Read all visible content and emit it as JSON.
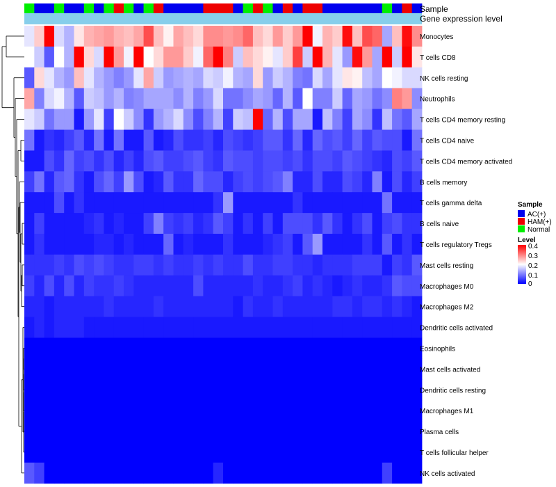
{
  "chart_data": {
    "type": "heatmap",
    "title": "",
    "annotation_rows": [
      "Sample",
      "Gene expression level"
    ],
    "row_labels": [
      "Monocytes",
      "T cells CD8",
      "NK cells resting",
      "Neutrophils",
      "T cells CD4 memory resting",
      "T cells CD4 naive",
      "T cells CD4 memory activated",
      "B cells memory",
      "T cells gamma delta",
      "B cells naive",
      "T cells regulatory  Tregs",
      "Mast cells resting",
      "Macrophages M0",
      "Macrophages M2",
      "Dendritic cells activated",
      "Eosinophils",
      "Mast cells activated",
      "Dendritic cells resting",
      "Macrophages M1",
      "Plasma cells",
      "T cells follicular helper",
      "NK cells activated"
    ],
    "sample_groups": [
      "Normal",
      "AC(+)",
      "AC(+)",
      "Normal",
      "AC(+)",
      "AC(+)",
      "Normal",
      "AC(+)",
      "Normal",
      "HAM(+)",
      "Normal",
      "AC(+)",
      "Normal",
      "HAM(+)",
      "AC(+)",
      "AC(+)",
      "AC(+)",
      "AC(+)",
      "HAM(+)",
      "HAM(+)",
      "HAM(+)",
      "AC(+)",
      "Normal",
      "HAM(+)",
      "Normal",
      "AC(+)",
      "HAM(+)",
      "AC(+)",
      "HAM(+)",
      "HAM(+)",
      "AC(+)",
      "AC(+)",
      "AC(+)",
      "AC(+)",
      "AC(+)",
      "AC(+)",
      "Normal",
      "AC(+)",
      "HAM(+)",
      "AC(+)"
    ],
    "values": [
      [
        0.18,
        0.24,
        0.4,
        0.17,
        0.14,
        0.22,
        0.26,
        0.27,
        0.28,
        0.26,
        0.25,
        0.27,
        0.34,
        0.25,
        0.21,
        0.27,
        0.25,
        0.23,
        0.29,
        0.29,
        0.28,
        0.29,
        0.32,
        0.25,
        0.23,
        0.28,
        0.24,
        0.28,
        0.4,
        0.19,
        0.26,
        0.24,
        0.39,
        0.25,
        0.34,
        0.32,
        0.13,
        0.25,
        0.39,
        0.29
      ],
      [
        0.2,
        0.16,
        0.07,
        0.2,
        0.14,
        0.4,
        0.23,
        0.17,
        0.4,
        0.28,
        0.19,
        0.4,
        0.2,
        0.23,
        0.28,
        0.28,
        0.24,
        0.19,
        0.32,
        0.4,
        0.3,
        0.16,
        0.25,
        0.23,
        0.21,
        0.18,
        0.24,
        0.35,
        0.16,
        0.4,
        0.26,
        0.18,
        0.12,
        0.39,
        0.28,
        0.13,
        0.4,
        0.16,
        0.4,
        0.22
      ],
      [
        0.07,
        0.23,
        0.18,
        0.14,
        0.12,
        0.25,
        0.18,
        0.14,
        0.12,
        0.1,
        0.12,
        0.18,
        0.27,
        0.16,
        0.12,
        0.13,
        0.14,
        0.13,
        0.17,
        0.16,
        0.19,
        0.14,
        0.13,
        0.23,
        0.12,
        0.16,
        0.14,
        0.1,
        0.09,
        0.17,
        0.13,
        0.18,
        0.22,
        0.21,
        0.15,
        0.13,
        0.2,
        0.19,
        0.17,
        0.17
      ],
      [
        0.27,
        0.1,
        0.17,
        0.19,
        0.14,
        0.07,
        0.16,
        0.15,
        0.12,
        0.14,
        0.1,
        0.11,
        0.13,
        0.13,
        0.13,
        0.11,
        0.14,
        0.1,
        0.12,
        0.17,
        0.09,
        0.09,
        0.11,
        0.13,
        0.12,
        0.08,
        0.14,
        0.07,
        0.2,
        0.1,
        0.1,
        0.16,
        0.08,
        0.13,
        0.12,
        0.09,
        0.11,
        0.3,
        0.28,
        0.11
      ],
      [
        0.18,
        0.16,
        0.09,
        0.12,
        0.12,
        0.02,
        0.12,
        0.18,
        0.05,
        0.2,
        0.16,
        0.11,
        0.04,
        0.12,
        0.14,
        0.17,
        0.11,
        0.06,
        0.1,
        0.14,
        0.05,
        0.16,
        0.15,
        0.4,
        0.08,
        0.14,
        0.06,
        0.13,
        0.13,
        0.02,
        0.15,
        0.1,
        0.05,
        0.13,
        0.11,
        0.04,
        0.15,
        0.09,
        0.07,
        0.13
      ],
      [
        0.09,
        0.02,
        0.04,
        0.03,
        0.05,
        0.07,
        0.03,
        0.09,
        0.02,
        0.09,
        0.02,
        0.02,
        0.07,
        0.02,
        0.03,
        0.06,
        0.04,
        0.04,
        0.05,
        0.03,
        0.06,
        0.05,
        0.04,
        0.05,
        0.07,
        0.07,
        0.04,
        0.08,
        0.03,
        0.08,
        0.06,
        0.07,
        0.05,
        0.08,
        0.05,
        0.07,
        0.06,
        0.06,
        0.02,
        0.09
      ],
      [
        0.02,
        0.02,
        0.06,
        0.04,
        0.08,
        0.05,
        0.06,
        0.04,
        0.06,
        0.03,
        0.05,
        0.03,
        0.06,
        0.07,
        0.05,
        0.05,
        0.06,
        0.07,
        0.05,
        0.04,
        0.07,
        0.06,
        0.06,
        0.05,
        0.06,
        0.06,
        0.05,
        0.06,
        0.04,
        0.06,
        0.06,
        0.05,
        0.07,
        0.06,
        0.05,
        0.04,
        0.03,
        0.06,
        0.05,
        0.07
      ],
      [
        0.05,
        0.09,
        0.03,
        0.07,
        0.08,
        0.04,
        0.02,
        0.06,
        0.08,
        0.05,
        0.12,
        0.06,
        0.02,
        0.03,
        0.07,
        0.04,
        0.04,
        0.08,
        0.06,
        0.06,
        0.03,
        0.05,
        0.06,
        0.05,
        0.06,
        0.07,
        0.1,
        0.03,
        0.03,
        0.06,
        0.03,
        0.03,
        0.06,
        0.05,
        0.03,
        0.1,
        0.02,
        0.06,
        0.03,
        0.05
      ],
      [
        0.02,
        0.02,
        0.02,
        0.06,
        0.02,
        0.04,
        0.02,
        0.02,
        0.02,
        0.02,
        0.02,
        0.02,
        0.02,
        0.02,
        0.02,
        0.02,
        0.02,
        0.02,
        0.02,
        0.04,
        0.12,
        0.02,
        0.02,
        0.02,
        0.02,
        0.02,
        0.02,
        0.04,
        0.02,
        0.02,
        0.02,
        0.02,
        0.02,
        0.02,
        0.02,
        0.02,
        0.09,
        0.02,
        0.02,
        0.02
      ],
      [
        0.02,
        0.05,
        0.02,
        0.02,
        0.02,
        0.02,
        0.03,
        0.04,
        0.02,
        0.03,
        0.02,
        0.02,
        0.05,
        0.1,
        0.05,
        0.04,
        0.05,
        0.03,
        0.04,
        0.07,
        0.05,
        0.02,
        0.04,
        0.02,
        0.05,
        0.02,
        0.06,
        0.06,
        0.06,
        0.04,
        0.07,
        0.04,
        0.02,
        0.04,
        0.06,
        0.02,
        0.05,
        0.06,
        0.04,
        0.04
      ],
      [
        0.02,
        0.04,
        0.02,
        0.02,
        0.02,
        0.02,
        0.02,
        0.03,
        0.03,
        0.02,
        0.03,
        0.02,
        0.02,
        0.02,
        0.08,
        0.02,
        0.03,
        0.02,
        0.02,
        0.02,
        0.04,
        0.02,
        0.02,
        0.02,
        0.03,
        0.04,
        0.05,
        0.02,
        0.07,
        0.12,
        0.02,
        0.02,
        0.02,
        0.02,
        0.04,
        0.02,
        0.07,
        0.02,
        0.04,
        0.02
      ],
      [
        0.04,
        0.04,
        0.04,
        0.05,
        0.04,
        0.06,
        0.05,
        0.06,
        0.05,
        0.04,
        0.04,
        0.05,
        0.05,
        0.04,
        0.05,
        0.04,
        0.04,
        0.05,
        0.04,
        0.05,
        0.04,
        0.04,
        0.06,
        0.04,
        0.04,
        0.05,
        0.05,
        0.04,
        0.04,
        0.03,
        0.04,
        0.04,
        0.04,
        0.05,
        0.05,
        0.05,
        0.02,
        0.05,
        0.04,
        0.07
      ],
      [
        0.05,
        0.03,
        0.06,
        0.03,
        0.06,
        0.03,
        0.05,
        0.04,
        0.04,
        0.05,
        0.04,
        0.03,
        0.03,
        0.03,
        0.03,
        0.03,
        0.03,
        0.06,
        0.03,
        0.03,
        0.03,
        0.03,
        0.03,
        0.04,
        0.03,
        0.03,
        0.04,
        0.05,
        0.03,
        0.04,
        0.03,
        0.02,
        0.03,
        0.04,
        0.03,
        0.03,
        0.04,
        0.07,
        0.06,
        0.06
      ],
      [
        0.03,
        0.03,
        0.02,
        0.03,
        0.03,
        0.03,
        0.03,
        0.03,
        0.04,
        0.03,
        0.03,
        0.03,
        0.03,
        0.04,
        0.03,
        0.03,
        0.03,
        0.03,
        0.03,
        0.03,
        0.03,
        0.02,
        0.04,
        0.03,
        0.03,
        0.04,
        0.03,
        0.03,
        0.03,
        0.03,
        0.03,
        0.04,
        0.04,
        0.03,
        0.04,
        0.04,
        0.03,
        0.04,
        0.03,
        0.02
      ],
      [
        0.02,
        0.03,
        0.02,
        0.03,
        0.03,
        0.03,
        0.02,
        0.02,
        0.02,
        0.02,
        0.02,
        0.02,
        0.02,
        0.02,
        0.02,
        0.02,
        0.02,
        0.02,
        0.02,
        0.02,
        0.02,
        0.02,
        0.02,
        0.02,
        0.02,
        0.02,
        0.02,
        0.02,
        0.02,
        0.02,
        0.02,
        0.02,
        0.02,
        0.02,
        0.02,
        0.02,
        0.02,
        0.02,
        0.02,
        0.02
      ],
      [
        0,
        0,
        0,
        0,
        0,
        0,
        0,
        0,
        0,
        0,
        0,
        0,
        0,
        0,
        0,
        0,
        0,
        0,
        0,
        0,
        0,
        0,
        0,
        0,
        0,
        0,
        0,
        0,
        0,
        0,
        0,
        0,
        0,
        0,
        0,
        0,
        0,
        0,
        0,
        0
      ],
      [
        0,
        0,
        0,
        0,
        0,
        0,
        0,
        0,
        0,
        0,
        0,
        0,
        0,
        0,
        0,
        0,
        0,
        0,
        0,
        0,
        0,
        0,
        0,
        0,
        0,
        0,
        0,
        0,
        0,
        0,
        0,
        0,
        0,
        0,
        0,
        0,
        0,
        0,
        0,
        0
      ],
      [
        0,
        0,
        0,
        0,
        0,
        0,
        0,
        0,
        0,
        0,
        0,
        0,
        0,
        0,
        0,
        0,
        0,
        0,
        0,
        0,
        0,
        0,
        0,
        0,
        0,
        0,
        0,
        0,
        0,
        0,
        0,
        0,
        0,
        0,
        0,
        0,
        0,
        0,
        0,
        0
      ],
      [
        0,
        0,
        0,
        0,
        0,
        0,
        0,
        0,
        0,
        0,
        0,
        0,
        0,
        0,
        0,
        0,
        0,
        0,
        0,
        0,
        0,
        0,
        0,
        0,
        0,
        0,
        0,
        0,
        0,
        0,
        0,
        0,
        0,
        0,
        0,
        0,
        0,
        0,
        0,
        0
      ],
      [
        0,
        0,
        0,
        0,
        0,
        0,
        0,
        0,
        0,
        0,
        0,
        0,
        0,
        0,
        0,
        0,
        0,
        0,
        0,
        0,
        0,
        0,
        0,
        0,
        0,
        0,
        0,
        0,
        0,
        0,
        0,
        0,
        0,
        0,
        0,
        0,
        0,
        0,
        0,
        0
      ],
      [
        0,
        0,
        0,
        0,
        0,
        0,
        0,
        0,
        0,
        0,
        0,
        0,
        0,
        0,
        0,
        0,
        0,
        0,
        0,
        0,
        0,
        0,
        0,
        0,
        0,
        0,
        0,
        0,
        0,
        0,
        0,
        0,
        0,
        0,
        0,
        0,
        0,
        0,
        0,
        0
      ],
      [
        0.07,
        0.05,
        0,
        0,
        0,
        0,
        0,
        0,
        0,
        0,
        0,
        0,
        0,
        0,
        0,
        0,
        0,
        0,
        0,
        0.03,
        0,
        0,
        0,
        0,
        0,
        0,
        0,
        0,
        0,
        0,
        0,
        0,
        0,
        0,
        0,
        0,
        0.05,
        0,
        0,
        0
      ]
    ],
    "value_range": [
      0,
      0.4
    ],
    "sample_legend": {
      "title": "Sample",
      "entries": [
        {
          "label": "AC(+)",
          "color": "#0000ee"
        },
        {
          "label": "HAM(+)",
          "color": "#ee0000"
        },
        {
          "label": "Normal",
          "color": "#00ee00"
        }
      ]
    },
    "level_legend": {
      "title": "Level",
      "ticks": [
        "0.4",
        "0.3",
        "0.2",
        "0.1",
        "0"
      ]
    },
    "colors": {
      "low": "#0000ff",
      "mid": "#ffffff",
      "high": "#ff0000",
      "expression_bar": "#87ceeb",
      "dendrogram": "#000000"
    }
  }
}
